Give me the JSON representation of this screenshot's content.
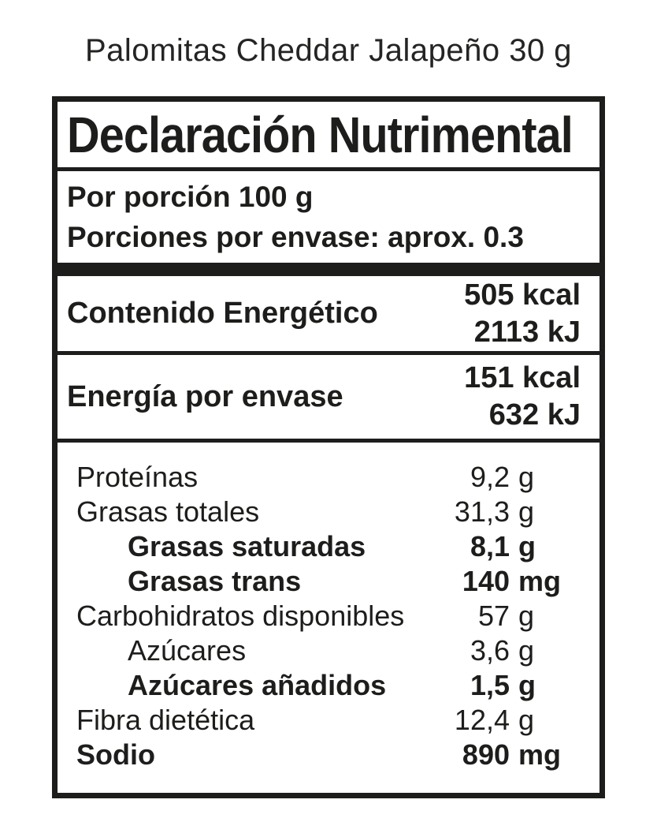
{
  "title": "Palomitas Cheddar Jalapeño 30 g",
  "label": {
    "header": "Declaración Nutrimental",
    "serving": {
      "per_portion": "Por porción 100 g",
      "portions_per_package": "Porciones por envase: aprox. 0.3"
    },
    "energy_rows": [
      {
        "name": "Contenido Energético",
        "kcal": "505 kcal",
        "kj": "2113 kJ"
      },
      {
        "name": "Energía por envase",
        "kcal": "151 kcal",
        "kj": "632 kJ"
      }
    ],
    "nutrients": [
      {
        "name": "Proteínas",
        "amount": "9,2",
        "unit": "g"
      },
      {
        "name": "Grasas totales",
        "amount": "31,3",
        "unit": "g"
      },
      {
        "name": "Grasas saturadas",
        "amount": "8,1",
        "unit": "g"
      },
      {
        "name": "Grasas trans",
        "amount": "140",
        "unit": "mg"
      },
      {
        "name": "Carbohidratos disponibles",
        "amount": "57",
        "unit": "g"
      },
      {
        "name": "Azúcares",
        "amount": "3,6",
        "unit": "g"
      },
      {
        "name": "Azúcares añadidos",
        "amount": "1,5",
        "unit": "g"
      },
      {
        "name": "Fibra dietética",
        "amount": "12,4",
        "unit": "g"
      },
      {
        "name": "Sodio",
        "amount": "890",
        "unit": "mg"
      }
    ],
    "colors": {
      "ink": "#1d1d1b",
      "background": "#ffffff"
    }
  }
}
